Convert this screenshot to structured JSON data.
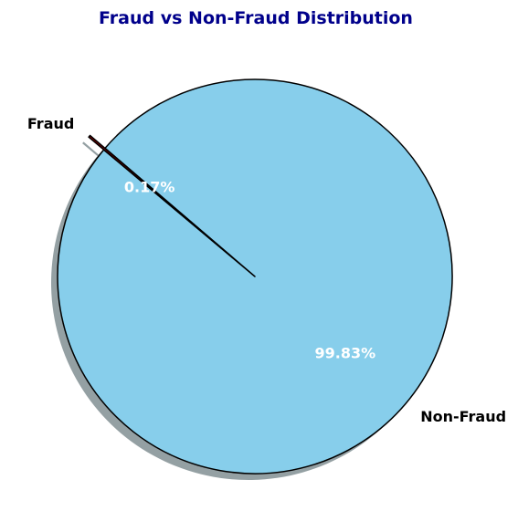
{
  "chart_data": {
    "type": "pie",
    "title": "Fraud vs Non-Fraud Distribution",
    "categories": [
      "Non-Fraud",
      "Fraud"
    ],
    "values": [
      99.83,
      0.17
    ],
    "value_labels": [
      "99.83%",
      "0.17%"
    ],
    "start_angle_deg": 140,
    "explode": [
      0,
      0.1
    ],
    "shadow": true,
    "colors": [
      "#87CEEB",
      "#8B0000"
    ],
    "edge_color": "#000000",
    "title_color": "#00008B",
    "pct_label_color": "#ffffff"
  }
}
